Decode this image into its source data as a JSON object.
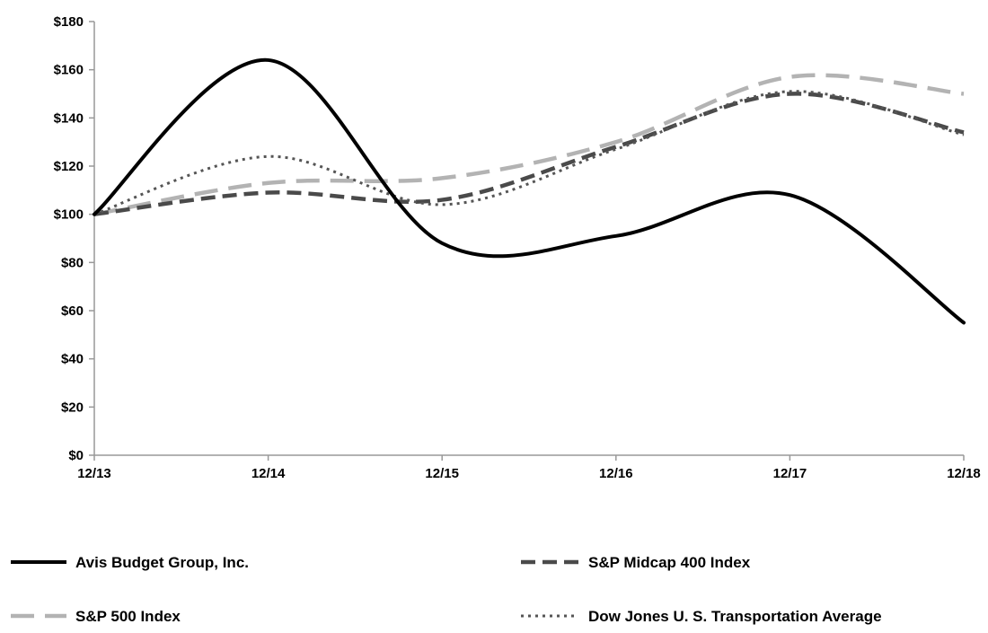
{
  "chart_data": {
    "type": "line",
    "title": "",
    "xlabel": "",
    "ylabel": "",
    "categories": [
      "12/13",
      "12/14",
      "12/15",
      "12/16",
      "12/17",
      "12/18"
    ],
    "ylim": [
      0,
      180
    ],
    "y_ticks": [
      0,
      20,
      40,
      60,
      80,
      100,
      120,
      140,
      160,
      180
    ],
    "y_tick_labels": [
      "$0",
      "$20",
      "$40",
      "$60",
      "$80",
      "$100",
      "$120",
      "$140",
      "$160",
      "$180"
    ],
    "grid": false,
    "legend_position": "bottom",
    "series": [
      {
        "name": "Avis Budget Group, Inc.",
        "values": [
          100,
          164,
          88,
          91,
          108,
          55
        ],
        "color": "#000000",
        "style": "solid"
      },
      {
        "name": "S&P Midcap 400 Index",
        "values": [
          100,
          109,
          106,
          128,
          150,
          134
        ],
        "color": "#4a4a4a",
        "style": "dashed"
      },
      {
        "name": "S&P 500 Index",
        "values": [
          100,
          113,
          115,
          130,
          157,
          150
        ],
        "color": "#b3b3b3",
        "style": "longdash"
      },
      {
        "name": "Dow Jones U. S. Transportation Average",
        "values": [
          100,
          124,
          104,
          127,
          151,
          133
        ],
        "color": "#555555",
        "style": "dotted"
      }
    ]
  }
}
